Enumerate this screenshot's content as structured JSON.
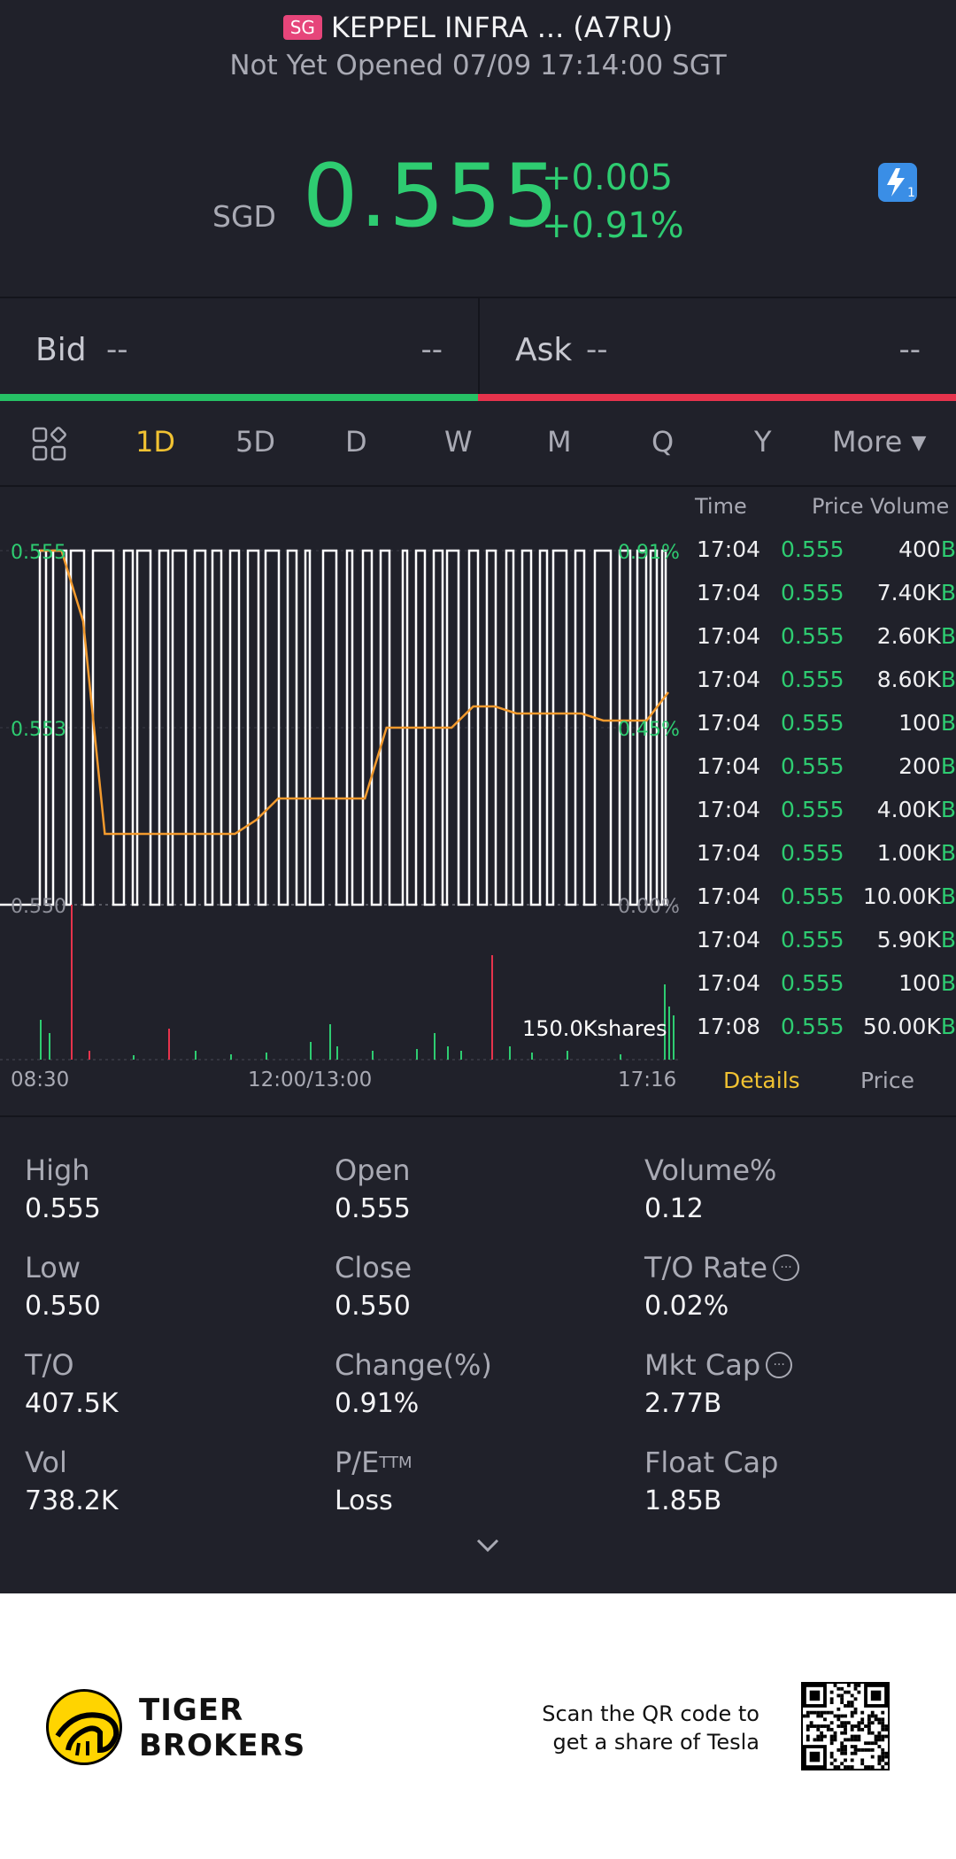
{
  "header": {
    "market_badge": "SG",
    "title": "KEPPEL INFRA ... (A7RU)",
    "status": "Not Yet Opened 07/09 17:14:00 SGT",
    "currency": "SGD",
    "price": "0.555",
    "change": "+0.005",
    "change_pct": "+0.91%",
    "flash_badge": "1"
  },
  "bidask": {
    "bid_label": "Bid",
    "bid_price": "--",
    "bid_size": "--",
    "ask_label": "Ask",
    "ask_price": "--",
    "ask_size": "--"
  },
  "tabs": [
    "1D",
    "5D",
    "D",
    "W",
    "M",
    "Q",
    "Y",
    "More"
  ],
  "active_tab": "1D",
  "chart": {
    "price_high": "0.555",
    "price_mid": "0.553",
    "price_low": "0.550",
    "pct_high": "0.91%",
    "pct_mid": "0.45%",
    "pct_low": "0.00%",
    "time_start": "08:30",
    "time_mid": "12:00/13:00",
    "time_end": "17:16",
    "volume_label": "150.0Kshares"
  },
  "chart_data": {
    "type": "line",
    "ylim": [
      0.55,
      0.555
    ],
    "x_ticks": [
      "08:30",
      "12:00/13:00",
      "17:16"
    ],
    "series": [],
    "avg_line": [
      0.555,
      0.555,
      0.554,
      0.551,
      0.551,
      0.551,
      0.551,
      0.551,
      0.551,
      0.551,
      0.5512,
      0.5515,
      0.5515,
      0.5515,
      0.5515,
      0.5515,
      0.5525,
      0.5525,
      0.5525,
      0.5525,
      0.5528,
      0.5528,
      0.5527,
      0.5527,
      0.5527,
      0.5527,
      0.5526,
      0.5526,
      0.5526,
      0.553
    ]
  },
  "trades": {
    "headers": [
      "Time",
      "Price",
      "Volume"
    ],
    "rows": [
      {
        "time": "17:04",
        "price": "0.555",
        "vol": "400",
        "side": "B"
      },
      {
        "time": "17:04",
        "price": "0.555",
        "vol": "7.40K",
        "side": "B"
      },
      {
        "time": "17:04",
        "price": "0.555",
        "vol": "2.60K",
        "side": "B"
      },
      {
        "time": "17:04",
        "price": "0.555",
        "vol": "8.60K",
        "side": "B"
      },
      {
        "time": "17:04",
        "price": "0.555",
        "vol": "100",
        "side": "B"
      },
      {
        "time": "17:04",
        "price": "0.555",
        "vol": "200",
        "side": "B"
      },
      {
        "time": "17:04",
        "price": "0.555",
        "vol": "4.00K",
        "side": "B"
      },
      {
        "time": "17:04",
        "price": "0.555",
        "vol": "1.00K",
        "side": "B"
      },
      {
        "time": "17:04",
        "price": "0.555",
        "vol": "10.00K",
        "side": "B"
      },
      {
        "time": "17:04",
        "price": "0.555",
        "vol": "5.90K",
        "side": "B"
      },
      {
        "time": "17:04",
        "price": "0.555",
        "vol": "100",
        "side": "B"
      },
      {
        "time": "17:08",
        "price": "0.555",
        "vol": "50.00K",
        "side": "B"
      }
    ],
    "tab_details": "Details",
    "tab_price": "Price"
  },
  "stats": [
    {
      "label": "High",
      "value": "0.555"
    },
    {
      "label": "Open",
      "value": "0.555"
    },
    {
      "label": "Volume%",
      "value": "0.12"
    },
    {
      "label": "Low",
      "value": "0.550"
    },
    {
      "label": "Close",
      "value": "0.550"
    },
    {
      "label": "T/O Rate",
      "value": "0.02%"
    },
    {
      "label": "T/O",
      "value": "407.5K"
    },
    {
      "label": "Change(%)",
      "value": "0.91%"
    },
    {
      "label": "Mkt Cap",
      "value": "2.77B"
    },
    {
      "label": "Vol",
      "value": "738.2K"
    },
    {
      "label": "P/E",
      "value": "Loss"
    },
    {
      "label": "Float Cap",
      "value": "1.85B"
    }
  ],
  "pe_suffix": "TTM",
  "footer": {
    "brand_line1": "TIGER",
    "brand_line2": "BROKERS",
    "promo_line1": "Scan the QR code to",
    "promo_line2": "get a share of Tesla"
  },
  "colors": {
    "up": "#2ecc71",
    "down": "#e6334c",
    "accent": "#f1c232",
    "bg": "#20212a"
  }
}
